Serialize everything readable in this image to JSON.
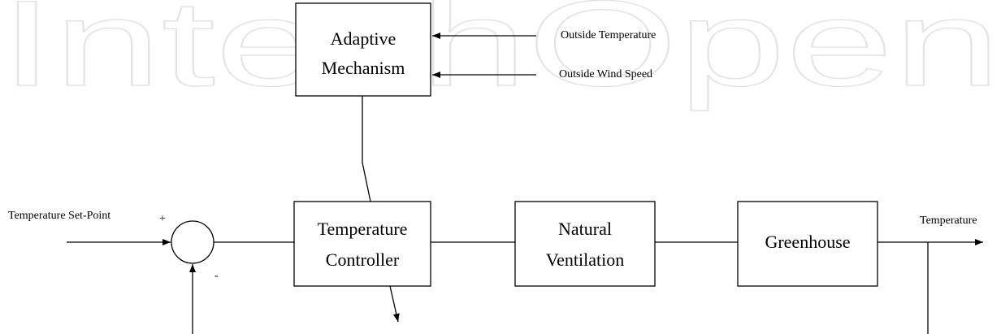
{
  "watermark": "IntechOpen",
  "nodes": [
    {
      "lines": [
        "Adaptive",
        "Mechanism"
      ]
    },
    {
      "lines": [
        "Temperature",
        "Controller"
      ]
    },
    {
      "lines": [
        "Natural",
        "Ventilation"
      ]
    },
    {
      "lines": [
        "Greenhouse"
      ]
    }
  ],
  "signals": {
    "outside_temperature": "Outside Temperature",
    "outside_wind_speed": "Outside Wind Speed",
    "set_point": "Temperature Set-Point",
    "plus": "+",
    "minus": "-",
    "output": "Temperature"
  }
}
